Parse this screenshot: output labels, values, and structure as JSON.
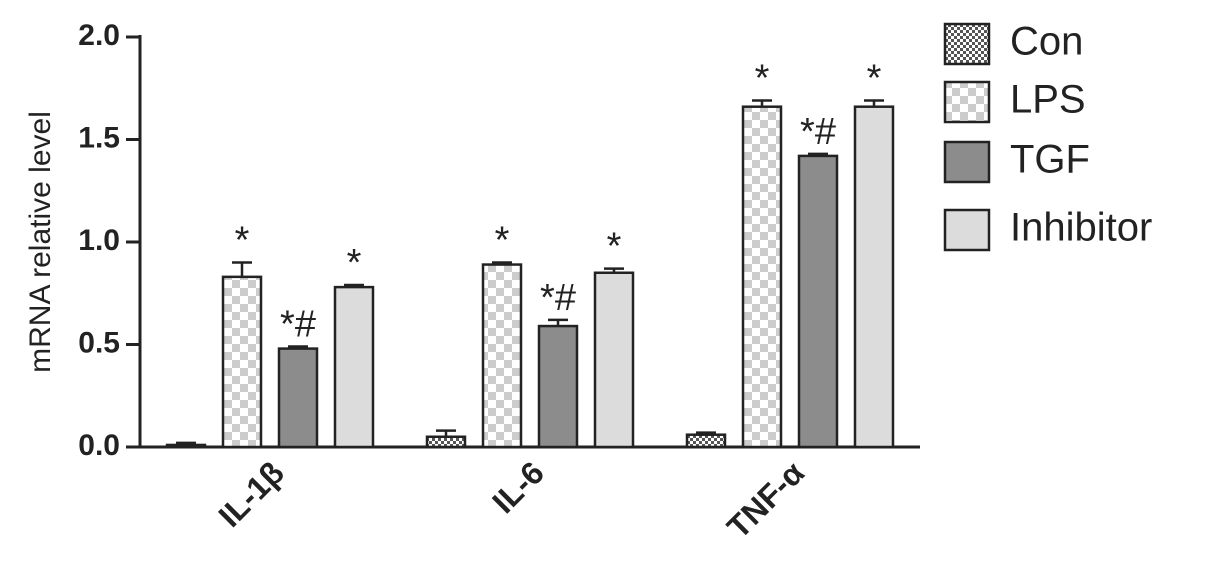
{
  "chart_data": {
    "type": "bar",
    "ylabel": "mRNA relative level",
    "categories": [
      "IL-1β",
      "IL-6",
      "TNF-α"
    ],
    "series": [
      {
        "name": "Con",
        "color": "#555555",
        "pattern": "checker-fine",
        "values": [
          0.01,
          0.05,
          0.06
        ],
        "errors": [
          0.01,
          0.03,
          0.01
        ]
      },
      {
        "name": "LPS",
        "color": "#cccccc",
        "pattern": "checker",
        "values": [
          0.83,
          0.89,
          1.66
        ],
        "errors": [
          0.07,
          0.01,
          0.03
        ],
        "labels": [
          "*",
          "*",
          "*"
        ]
      },
      {
        "name": "TGF",
        "color": "#8c8c8c",
        "values": [
          0.48,
          0.59,
          1.42
        ],
        "errors": [
          0.01,
          0.03,
          0.01
        ],
        "labels": [
          "*#",
          "*#",
          "*#"
        ]
      },
      {
        "name": "Inhibitor",
        "color": "#dcdcdc",
        "values": [
          0.78,
          0.85,
          1.66
        ],
        "errors": [
          0.01,
          0.02,
          0.03
        ],
        "labels": [
          "*",
          "*",
          "*"
        ]
      }
    ],
    "ylim": [
      0,
      2.0
    ],
    "yticks": [
      {
        "value": 0,
        "label": "0.0"
      },
      {
        "value": 0.5,
        "label": "0.5"
      },
      {
        "value": 1,
        "label": "1.0"
      },
      {
        "value": 1.5,
        "label": "1.5"
      },
      {
        "value": 2,
        "label": "2.0"
      }
    ],
    "legend": "right"
  }
}
